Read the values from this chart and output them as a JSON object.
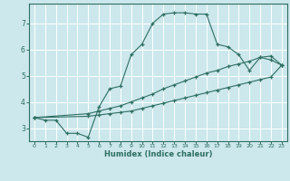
{
  "xlabel": "Humidex (Indice chaleur)",
  "bg_color": "#cce8ec",
  "grid_color": "#ffffff",
  "line_color": "#2e6e62",
  "xlim": [
    -0.5,
    23.5
  ],
  "ylim": [
    2.5,
    7.75
  ],
  "xticks": [
    0,
    1,
    2,
    3,
    4,
    5,
    6,
    7,
    8,
    9,
    10,
    11,
    12,
    13,
    14,
    15,
    16,
    17,
    18,
    19,
    20,
    21,
    22,
    23
  ],
  "yticks": [
    3,
    4,
    5,
    6,
    7
  ],
  "line1_x": [
    0,
    1,
    2,
    3,
    4,
    5,
    6,
    7,
    8,
    9,
    10,
    11,
    12,
    13,
    14,
    15,
    16,
    17,
    18,
    19,
    20,
    21,
    22,
    23
  ],
  "line1_y": [
    3.4,
    3.3,
    3.3,
    2.8,
    2.8,
    2.65,
    3.8,
    4.5,
    4.6,
    5.8,
    6.2,
    7.0,
    7.35,
    7.4,
    7.4,
    7.35,
    7.35,
    6.2,
    6.1,
    5.8,
    5.2,
    5.7,
    5.6,
    5.4
  ],
  "line2_x": [
    0,
    5,
    6,
    7,
    8,
    9,
    10,
    11,
    12,
    13,
    14,
    15,
    16,
    17,
    18,
    19,
    20,
    21,
    22,
    23
  ],
  "line2_y": [
    3.4,
    3.55,
    3.65,
    3.75,
    3.85,
    4.0,
    4.15,
    4.3,
    4.5,
    4.65,
    4.8,
    4.95,
    5.1,
    5.2,
    5.35,
    5.45,
    5.55,
    5.7,
    5.75,
    5.4
  ],
  "line3_x": [
    0,
    5,
    6,
    7,
    8,
    9,
    10,
    11,
    12,
    13,
    14,
    15,
    16,
    17,
    18,
    19,
    20,
    21,
    22,
    23
  ],
  "line3_y": [
    3.4,
    3.45,
    3.5,
    3.55,
    3.6,
    3.65,
    3.75,
    3.85,
    3.95,
    4.05,
    4.15,
    4.25,
    4.35,
    4.45,
    4.55,
    4.65,
    4.75,
    4.85,
    4.95,
    5.4
  ]
}
